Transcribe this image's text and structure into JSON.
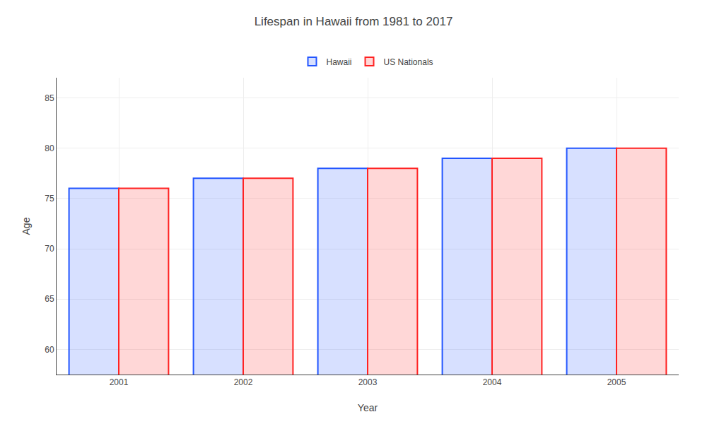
{
  "chart_data": {
    "type": "bar",
    "title": "Lifespan in Hawaii from 1981 to 2017",
    "x_label": "Year",
    "y_label": "Age",
    "categories": [
      "2001",
      "2002",
      "2003",
      "2004",
      "2005"
    ],
    "series": [
      {
        "name": "Hawaii",
        "color": "#2255ff",
        "values": [
          76,
          77,
          78,
          79,
          80
        ]
      },
      {
        "name": "US Nationals",
        "color": "#ff2222",
        "values": [
          76,
          77,
          78,
          79,
          80
        ]
      }
    ],
    "ylim": [
      57.5,
      87
    ],
    "yticks": [
      60,
      65,
      70,
      75,
      80,
      85
    ],
    "grid": true,
    "legend": "top"
  }
}
